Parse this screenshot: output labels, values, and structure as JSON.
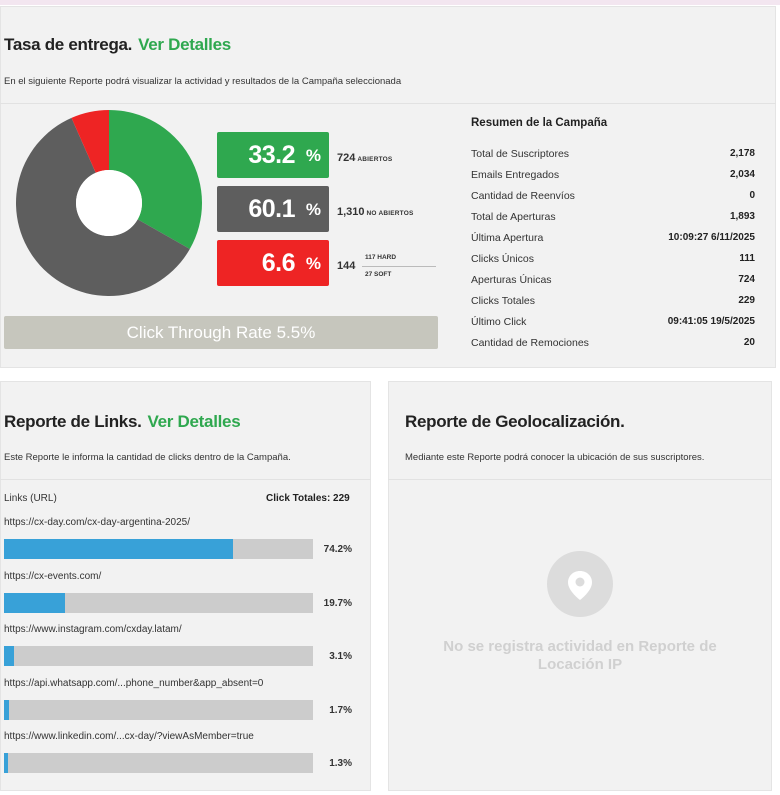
{
  "delivery": {
    "title": "Tasa de entrega.",
    "details_link": "Ver Detalles",
    "description": "En el siguiente Reporte podrá visualizar la actividad y resultados de la Campaña seleccionada",
    "opened": {
      "value": "33.2",
      "pct_sign": "%",
      "count": "724",
      "label": "ABIERTOS",
      "fraction": 0.332
    },
    "not_opened": {
      "value": "60.1",
      "pct_sign": "%",
      "count": "1,310",
      "label": "NO ABIERTOS",
      "fraction": 0.601
    },
    "bounced": {
      "value": "6.6",
      "pct_sign": "%",
      "count": "144",
      "hard": "117 HARD",
      "soft": "27 SOFT",
      "fraction": 0.066
    },
    "colors": {
      "opened": "#2fa84f",
      "not_opened": "#5e5e5e",
      "bounced": "#ee2424"
    },
    "ctr_label": "Click Through Rate 5.5%"
  },
  "summary": {
    "title": "Resumen de la Campaña",
    "rows": [
      {
        "label": "Total de Suscriptores",
        "value": "2,178"
      },
      {
        "label": "Emails Entregados",
        "value": "2,034"
      },
      {
        "label": "Cantidad de Reenvíos",
        "value": "0"
      },
      {
        "label": "Total de Aperturas",
        "value": "1,893"
      },
      {
        "label": "Última Apertura",
        "value": "10:09:27 6/11/2025"
      },
      {
        "label": "Clicks Únicos",
        "value": "111"
      },
      {
        "label": "Aperturas Únicas",
        "value": "724"
      },
      {
        "label": "Clicks Totales",
        "value": "229"
      },
      {
        "label": "Último Click",
        "value": "09:41:05 19/5/2025"
      },
      {
        "label": "Cantidad de Remociones",
        "value": "20"
      }
    ]
  },
  "links": {
    "title": "Reporte de Links.",
    "details_link": "Ver Detalles",
    "description": "Este Reporte le informa la cantidad de clicks dentro de la Campaña.",
    "col_label": "Links (URL)",
    "total_label": "Click Totales: 229",
    "items": [
      {
        "url": "https://cx-day.com/cx-day-argentina-2025/",
        "pct": "74.2%",
        "fraction": 0.742
      },
      {
        "url": "https://cx-events.com/",
        "pct": "19.7%",
        "fraction": 0.197
      },
      {
        "url": "https://www.instagram.com/cxday.latam/",
        "pct": "3.1%",
        "fraction": 0.031
      },
      {
        "url": "https://api.whatsapp.com/...phone_number&app_absent=0",
        "pct": "1.7%",
        "fraction": 0.017
      },
      {
        "url": "https://www.linkedin.com/...cx-day/?viewAsMember=true",
        "pct": "1.3%",
        "fraction": 0.013
      }
    ]
  },
  "geo": {
    "title": "Reporte de Geolocalización.",
    "description": "Mediante este Reporte podrá conocer la ubicación de sus suscriptores.",
    "empty_message": "No se registra actividad en Reporte de Locación IP",
    "icon": "location-pin-icon"
  }
}
